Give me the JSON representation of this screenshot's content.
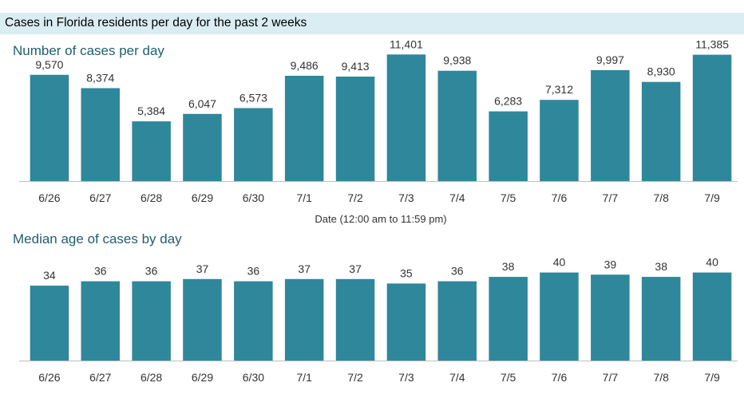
{
  "header": {
    "title": "Cases in Florida residents per day for the past 2 weeks"
  },
  "colors": {
    "bar": "#2f879b",
    "header_bg": "#daedf3",
    "section_title": "#1f5f6e",
    "axis": "#bfbfbf"
  },
  "chart_data": [
    {
      "type": "bar",
      "title": "Number of cases per day",
      "xlabel": "Date (12:00 am to 11:59 pm)",
      "ylabel": "",
      "categories": [
        "6/26",
        "6/27",
        "6/28",
        "6/29",
        "6/30",
        "7/1",
        "7/2",
        "7/3",
        "7/4",
        "7/5",
        "7/6",
        "7/7",
        "7/8",
        "7/9"
      ],
      "values": [
        9570,
        8374,
        5384,
        6047,
        6573,
        9486,
        9413,
        11401,
        9938,
        6283,
        7312,
        9997,
        8930,
        11385
      ],
      "value_labels": [
        "9,570",
        "8,374",
        "5,384",
        "6,047",
        "6,573",
        "9,486",
        "9,413",
        "11,401",
        "9,938",
        "6,283",
        "7,312",
        "9,997",
        "8,930",
        "11,385"
      ],
      "ylim": [
        0,
        12000
      ],
      "grid": false,
      "legend": "none"
    },
    {
      "type": "bar",
      "title": "Median age of cases by day",
      "xlabel": "",
      "ylabel": "",
      "categories": [
        "6/26",
        "6/27",
        "6/28",
        "6/29",
        "6/30",
        "7/1",
        "7/2",
        "7/3",
        "7/4",
        "7/5",
        "7/6",
        "7/7",
        "7/8",
        "7/9"
      ],
      "values": [
        34,
        36,
        36,
        37,
        36,
        37,
        37,
        35,
        36,
        38,
        40,
        39,
        38,
        40
      ],
      "value_labels": [
        "34",
        "36",
        "36",
        "37",
        "36",
        "37",
        "37",
        "35",
        "36",
        "38",
        "40",
        "39",
        "38",
        "40"
      ],
      "ylim": [
        0,
        46
      ],
      "grid": false,
      "legend": "none"
    }
  ]
}
